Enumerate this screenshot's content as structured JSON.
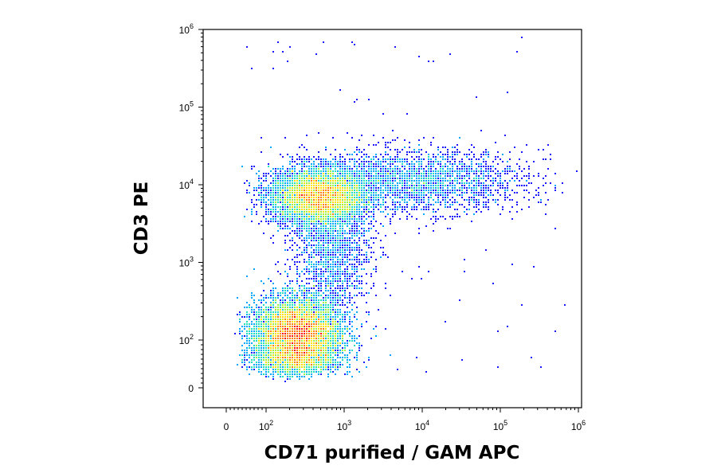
{
  "chart_data": {
    "type": "scatter",
    "subtype": "flow-cytometry-density-dot-plot",
    "title": "",
    "xlabel": "CD71 purified / GAM APC",
    "ylabel": "CD3 PE",
    "x_scale": "biexponential (linear near 0, log above)",
    "y_scale": "biexponential (linear near 0, log above)",
    "xlim": [
      -30,
      1200000
    ],
    "ylim": [
      -30,
      1500000
    ],
    "grid": false,
    "legend": "none",
    "x_ticks": [
      {
        "value": 0,
        "base": "0",
        "exp": ""
      },
      {
        "value": 100,
        "base": "10",
        "exp": "2"
      },
      {
        "value": 1000,
        "base": "10",
        "exp": "3"
      },
      {
        "value": 10000,
        "base": "10",
        "exp": "4"
      },
      {
        "value": 100000,
        "base": "10",
        "exp": "5"
      },
      {
        "value": 1000000,
        "base": "10",
        "exp": "6"
      }
    ],
    "y_ticks": [
      {
        "value": 0,
        "base": "0",
        "exp": ""
      },
      {
        "value": 100,
        "base": "10",
        "exp": "2"
      },
      {
        "value": 1000,
        "base": "10",
        "exp": "3"
      },
      {
        "value": 10000,
        "base": "10",
        "exp": "4"
      },
      {
        "value": 100000,
        "base": "10",
        "exp": "5"
      },
      {
        "value": 1000000,
        "base": "10",
        "exp": "6"
      }
    ],
    "color_scale": [
      "#1a1aff",
      "#00a8ff",
      "#20e0c0",
      "#a0f040",
      "#ffe000",
      "#ff8000",
      "#ff1000"
    ],
    "populations": [
      {
        "name": "",
        "x_center": 250,
        "y_center": 110,
        "x_spread_decades": 0.28,
        "y_spread_decades": 0.24,
        "relative_density": 1.0
      },
      {
        "name": "",
        "x_center": 450,
        "y_center": 7000,
        "x_spread_decades": 0.3,
        "y_spread_decades": 0.18,
        "relative_density": 0.55
      },
      {
        "name": "",
        "x_center": 8000,
        "y_center": 11000,
        "x_spread_decades": 0.7,
        "y_spread_decades": 0.2,
        "relative_density": 0.22
      },
      {
        "name": "",
        "x_center": 700,
        "y_center": 1500,
        "x_spread_decades": 0.25,
        "y_spread_decades": 0.45,
        "relative_density": 0.15
      }
    ]
  }
}
